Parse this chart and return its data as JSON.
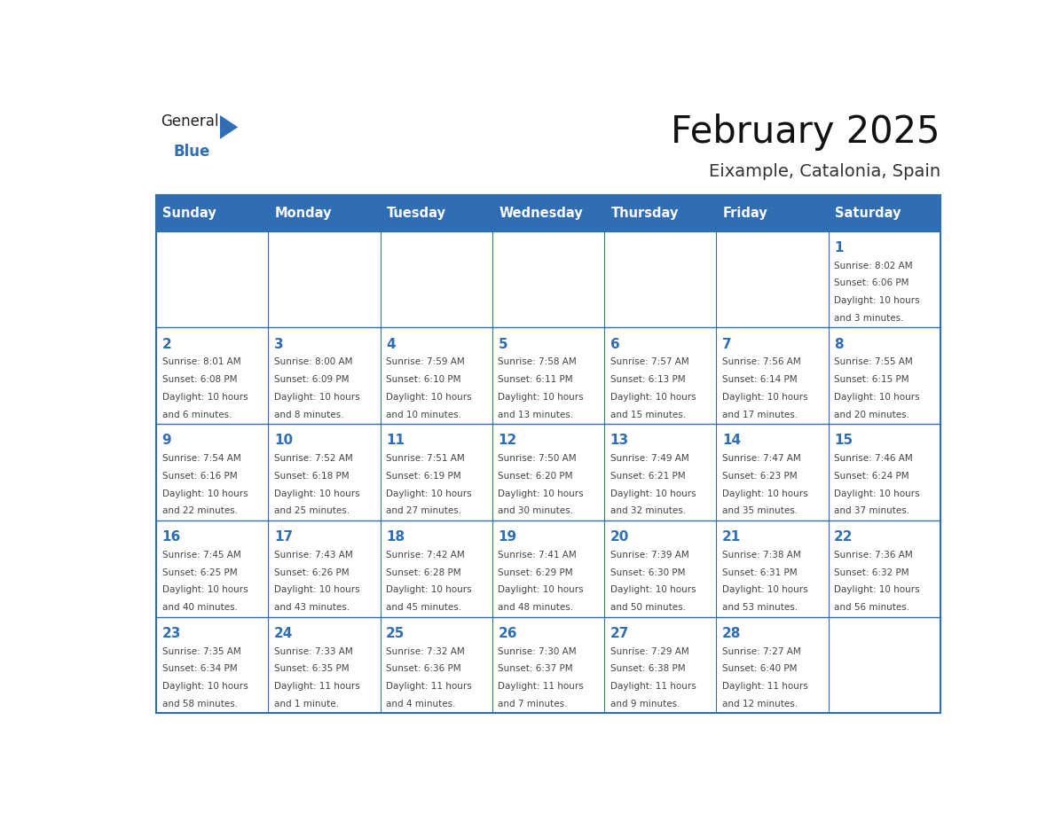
{
  "title": "February 2025",
  "subtitle": "Eixample, Catalonia, Spain",
  "header_bg": "#2F6DB5",
  "header_text_color": "#FFFFFF",
  "cell_bg": "#FFFFFF",
  "cell_border_color": "#2F6DB5",
  "day_num_color": "#2F6DB5",
  "detail_color": "#444444",
  "logo_general_color": "#222222",
  "logo_blue_color": "#2F6DB5",
  "days_of_week": [
    "Sunday",
    "Monday",
    "Tuesday",
    "Wednesday",
    "Thursday",
    "Friday",
    "Saturday"
  ],
  "weeks": [
    [
      {
        "day": "",
        "sunrise": "",
        "sunset": "",
        "daylight": ""
      },
      {
        "day": "",
        "sunrise": "",
        "sunset": "",
        "daylight": ""
      },
      {
        "day": "",
        "sunrise": "",
        "sunset": "",
        "daylight": ""
      },
      {
        "day": "",
        "sunrise": "",
        "sunset": "",
        "daylight": ""
      },
      {
        "day": "",
        "sunrise": "",
        "sunset": "",
        "daylight": ""
      },
      {
        "day": "",
        "sunrise": "",
        "sunset": "",
        "daylight": ""
      },
      {
        "day": "1",
        "sunrise": "8:02 AM",
        "sunset": "6:06 PM",
        "daylight": "10 hours and 3 minutes."
      }
    ],
    [
      {
        "day": "2",
        "sunrise": "8:01 AM",
        "sunset": "6:08 PM",
        "daylight": "10 hours and 6 minutes."
      },
      {
        "day": "3",
        "sunrise": "8:00 AM",
        "sunset": "6:09 PM",
        "daylight": "10 hours and 8 minutes."
      },
      {
        "day": "4",
        "sunrise": "7:59 AM",
        "sunset": "6:10 PM",
        "daylight": "10 hours and 10 minutes."
      },
      {
        "day": "5",
        "sunrise": "7:58 AM",
        "sunset": "6:11 PM",
        "daylight": "10 hours and 13 minutes."
      },
      {
        "day": "6",
        "sunrise": "7:57 AM",
        "sunset": "6:13 PM",
        "daylight": "10 hours and 15 minutes."
      },
      {
        "day": "7",
        "sunrise": "7:56 AM",
        "sunset": "6:14 PM",
        "daylight": "10 hours and 17 minutes."
      },
      {
        "day": "8",
        "sunrise": "7:55 AM",
        "sunset": "6:15 PM",
        "daylight": "10 hours and 20 minutes."
      }
    ],
    [
      {
        "day": "9",
        "sunrise": "7:54 AM",
        "sunset": "6:16 PM",
        "daylight": "10 hours and 22 minutes."
      },
      {
        "day": "10",
        "sunrise": "7:52 AM",
        "sunset": "6:18 PM",
        "daylight": "10 hours and 25 minutes."
      },
      {
        "day": "11",
        "sunrise": "7:51 AM",
        "sunset": "6:19 PM",
        "daylight": "10 hours and 27 minutes."
      },
      {
        "day": "12",
        "sunrise": "7:50 AM",
        "sunset": "6:20 PM",
        "daylight": "10 hours and 30 minutes."
      },
      {
        "day": "13",
        "sunrise": "7:49 AM",
        "sunset": "6:21 PM",
        "daylight": "10 hours and 32 minutes."
      },
      {
        "day": "14",
        "sunrise": "7:47 AM",
        "sunset": "6:23 PM",
        "daylight": "10 hours and 35 minutes."
      },
      {
        "day": "15",
        "sunrise": "7:46 AM",
        "sunset": "6:24 PM",
        "daylight": "10 hours and 37 minutes."
      }
    ],
    [
      {
        "day": "16",
        "sunrise": "7:45 AM",
        "sunset": "6:25 PM",
        "daylight": "10 hours and 40 minutes."
      },
      {
        "day": "17",
        "sunrise": "7:43 AM",
        "sunset": "6:26 PM",
        "daylight": "10 hours and 43 minutes."
      },
      {
        "day": "18",
        "sunrise": "7:42 AM",
        "sunset": "6:28 PM",
        "daylight": "10 hours and 45 minutes."
      },
      {
        "day": "19",
        "sunrise": "7:41 AM",
        "sunset": "6:29 PM",
        "daylight": "10 hours and 48 minutes."
      },
      {
        "day": "20",
        "sunrise": "7:39 AM",
        "sunset": "6:30 PM",
        "daylight": "10 hours and 50 minutes."
      },
      {
        "day": "21",
        "sunrise": "7:38 AM",
        "sunset": "6:31 PM",
        "daylight": "10 hours and 53 minutes."
      },
      {
        "day": "22",
        "sunrise": "7:36 AM",
        "sunset": "6:32 PM",
        "daylight": "10 hours and 56 minutes."
      }
    ],
    [
      {
        "day": "23",
        "sunrise": "7:35 AM",
        "sunset": "6:34 PM",
        "daylight": "10 hours and 58 minutes."
      },
      {
        "day": "24",
        "sunrise": "7:33 AM",
        "sunset": "6:35 PM",
        "daylight": "11 hours and 1 minute."
      },
      {
        "day": "25",
        "sunrise": "7:32 AM",
        "sunset": "6:36 PM",
        "daylight": "11 hours and 4 minutes."
      },
      {
        "day": "26",
        "sunrise": "7:30 AM",
        "sunset": "6:37 PM",
        "daylight": "11 hours and 7 minutes."
      },
      {
        "day": "27",
        "sunrise": "7:29 AM",
        "sunset": "6:38 PM",
        "daylight": "11 hours and 9 minutes."
      },
      {
        "day": "28",
        "sunrise": "7:27 AM",
        "sunset": "6:40 PM",
        "daylight": "11 hours and 12 minutes."
      },
      {
        "day": "",
        "sunrise": "",
        "sunset": "",
        "daylight": ""
      }
    ]
  ]
}
